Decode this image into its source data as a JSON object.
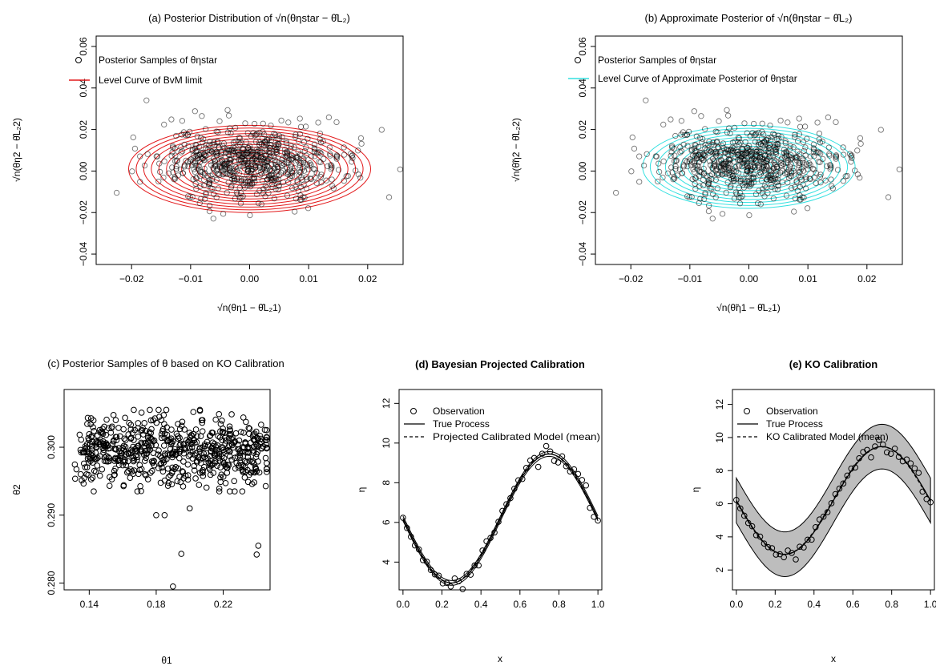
{
  "colors": {
    "bvm_contour": "#e31a1c",
    "approx_contour": "#33e0e0",
    "point_stroke": "#000000",
    "band_fill": "#bdbdbd"
  },
  "chart_data": [
    {
      "id": "a",
      "type": "scatter",
      "title": "(a) Posterior Distribution of √n(θηstar − θ̂L₂)",
      "xlabel": "√n(θη1 − θ̂L₂1)",
      "ylabel": "√n(θη2 − θ̂L₂2)",
      "xlim": [
        -0.026,
        0.026
      ],
      "ylim": [
        -0.045,
        0.065
      ],
      "xticks": [
        -0.02,
        -0.01,
        0.0,
        0.01,
        0.02
      ],
      "xtick_labels": [
        "−0.02",
        "−0.01",
        "0.00",
        "0.01",
        "0.02"
      ],
      "yticks": [
        -0.04,
        -0.02,
        0.0,
        0.02,
        0.04,
        0.06
      ],
      "ytick_labels": [
        "−0.04",
        "−0.02",
        "0.00",
        "0.02",
        "0.04",
        "0.06"
      ],
      "legend": [
        {
          "label": "Posterior Samples of θηstar",
          "kind": "point"
        },
        {
          "label": "Level Curve of BvM limit",
          "kind": "line",
          "color": "#e31a1c"
        }
      ],
      "contours": {
        "center": [
          0,
          0.001
        ],
        "rx_max": 0.0205,
        "ry_max": 0.021,
        "levels": 16
      },
      "samples": {
        "n": 700,
        "sd_x": 0.0075,
        "sd_y": 0.0085,
        "mean_y": 0.004
      },
      "grid": false
    },
    {
      "id": "b",
      "type": "scatter",
      "title": "(b) Approximate Posterior of √n(θηstar − θ̂L₂)",
      "xlabel": "√n(θ̃η1 − θ̂L₂1)",
      "ylabel": "√n(θ̃η2 − θ̂L₂2)",
      "xlim": [
        -0.026,
        0.026
      ],
      "ylim": [
        -0.045,
        0.065
      ],
      "xticks": [
        -0.02,
        -0.01,
        0.0,
        0.01,
        0.02
      ],
      "xtick_labels": [
        "−0.02",
        "−0.01",
        "0.00",
        "0.01",
        "0.02"
      ],
      "yticks": [
        -0.04,
        -0.02,
        0.0,
        0.02,
        0.04,
        0.06
      ],
      "ytick_labels": [
        "−0.04",
        "−0.02",
        "0.00",
        "0.02",
        "0.04",
        "0.06"
      ],
      "legend": [
        {
          "label": "Posterior Samples of θηstar",
          "kind": "point"
        },
        {
          "label": "Level Curve of Approximate Posterior of θηstar",
          "kind": "line",
          "color": "#33e0e0"
        }
      ],
      "contours": {
        "center": [
          0,
          0.002
        ],
        "rx_max": 0.018,
        "ry_max": 0.02,
        "levels": 14
      },
      "samples": {
        "n": 700,
        "sd_x": 0.0075,
        "sd_y": 0.0085,
        "mean_y": 0.004
      },
      "grid": false
    },
    {
      "id": "c",
      "type": "scatter",
      "title": "(c) Posterior Samples of θ based on KO Calibration",
      "xlabel": "θ1",
      "ylabel": "θ2",
      "xlim": [
        0.125,
        0.248
      ],
      "ylim": [
        0.279,
        0.3085
      ],
      "xticks": [
        0.14,
        0.18,
        0.22
      ],
      "xtick_labels": [
        "0.14",
        "0.18",
        "0.22"
      ],
      "yticks": [
        0.28,
        0.29,
        0.3
      ],
      "ytick_labels": [
        "0.280",
        "0.290",
        "0.300"
      ],
      "samples": {
        "n": 650,
        "mean_x": 0.19,
        "sd_x": 0.027,
        "mean_y": 0.2995,
        "sd_y": 0.0025
      },
      "outliers": [
        [
          0.19,
          0.2795
        ],
        [
          0.195,
          0.2843
        ],
        [
          0.2,
          0.291
        ],
        [
          0.241,
          0.2855
        ],
        [
          0.24,
          0.2842
        ],
        [
          0.18,
          0.29
        ],
        [
          0.185,
          0.29
        ]
      ],
      "grid": false
    },
    {
      "id": "d",
      "type": "line",
      "title": "(d) Bayesian Projected Calibration",
      "xlabel": "x",
      "ylabel": "η",
      "xlim": [
        -0.02,
        1.02
      ],
      "ylim": [
        2.6,
        12.7
      ],
      "xticks": [
        0,
        0.2,
        0.4,
        0.6,
        0.8,
        1.0
      ],
      "xtick_labels": [
        "0.0",
        "0.2",
        "0.4",
        "0.6",
        "0.8",
        "1.0"
      ],
      "yticks": [
        4,
        6,
        8,
        10,
        12
      ],
      "ytick_labels": [
        "4",
        "6",
        "8",
        "10",
        "12"
      ],
      "legend": [
        {
          "label": "Observation",
          "kind": "point"
        },
        {
          "label": "True Process",
          "kind": "solid"
        },
        {
          "label": "Projected Calibrated Model (mean)",
          "kind": "dashed"
        }
      ],
      "observations": {
        "x_start": 0,
        "x_end": 1,
        "n": 50,
        "noise": 0.18
      },
      "true_process": {
        "formula": "6.2 - 3.25*sin(2*pi*x)"
      },
      "band": {
        "half_width": 0.12,
        "filled": false
      },
      "grid": false
    },
    {
      "id": "e",
      "type": "line",
      "title": "(e) KO Calibration",
      "xlabel": "x",
      "ylabel": "η",
      "xlim": [
        -0.02,
        1.02
      ],
      "ylim": [
        0.8,
        12.9
      ],
      "xticks": [
        0,
        0.2,
        0.4,
        0.6,
        0.8,
        1.0
      ],
      "xtick_labels": [
        "0.0",
        "0.2",
        "0.4",
        "0.6",
        "0.8",
        "1.0"
      ],
      "yticks": [
        2,
        4,
        6,
        8,
        10,
        12
      ],
      "ytick_labels": [
        "2",
        "4",
        "6",
        "8",
        "10",
        "12"
      ],
      "legend": [
        {
          "label": "Observation",
          "kind": "point"
        },
        {
          "label": "True Process",
          "kind": "solid"
        },
        {
          "label": "KO Calibrated Model (mean)",
          "kind": "dashed"
        }
      ],
      "observations": {
        "x_start": 0,
        "x_end": 1,
        "n": 50,
        "noise": 0.18
      },
      "true_process": {
        "formula": "6.2 - 3.25*sin(2*pi*x)"
      },
      "band": {
        "half_width": 1.35,
        "filled": true
      },
      "grid": false
    }
  ]
}
